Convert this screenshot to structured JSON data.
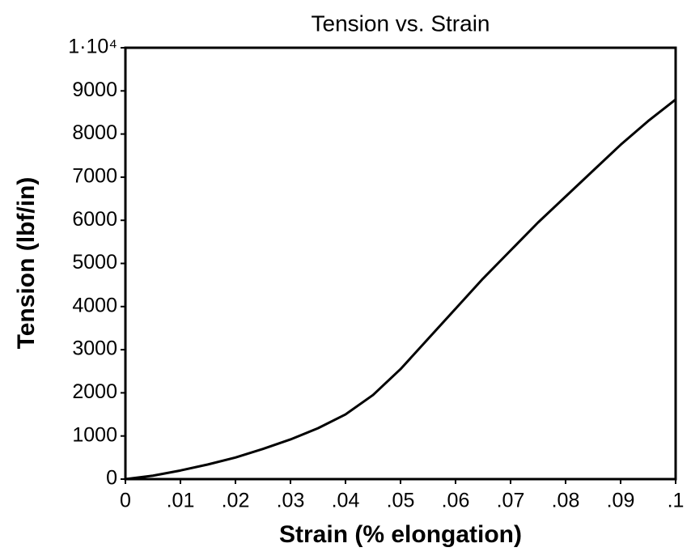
{
  "chart_data": {
    "type": "line",
    "title": "Tension vs. Strain",
    "x_label": "Strain (% elongation)",
    "y_label": "Tension (lbf/in)",
    "x": [
      0,
      0.005,
      0.01,
      0.015,
      0.02,
      0.025,
      0.03,
      0.035,
      0.04,
      0.045,
      0.05,
      0.055,
      0.06,
      0.065,
      0.07,
      0.075,
      0.08,
      0.085,
      0.09,
      0.095,
      0.1
    ],
    "series": [
      {
        "color": "#000000",
        "values": [
          0,
          80,
          200,
          340,
          500,
          700,
          920,
          1180,
          1500,
          1950,
          2550,
          3250,
          3950,
          4650,
          5300,
          5950,
          6550,
          7150,
          7750,
          8300,
          8800
        ]
      }
    ],
    "xlim": [
      0,
      0.1
    ],
    "xticks": [
      0,
      {
        "value": 0.01,
        "label": ".01"
      },
      {
        "value": 0.02,
        "label": ".02"
      },
      {
        "value": 0.03,
        "label": ".03"
      },
      {
        "value": 0.04,
        "label": ".04"
      },
      {
        "value": 0.05,
        "label": ".05"
      },
      {
        "value": 0.06,
        "label": ".06"
      },
      {
        "value": 0.07,
        "label": ".07"
      },
      {
        "value": 0.08,
        "label": ".08"
      },
      {
        "value": 0.09,
        "label": ".09"
      },
      {
        "value": 0.1,
        "label": ".1"
      }
    ],
    "ylim": [
      0,
      10000
    ],
    "yticks": [
      0,
      1000,
      2000,
      3000,
      4000,
      5000,
      6000,
      7000,
      8000,
      9000,
      {
        "value": 10000,
        "label": "1·10⁴"
      }
    ],
    "grid": false
  }
}
